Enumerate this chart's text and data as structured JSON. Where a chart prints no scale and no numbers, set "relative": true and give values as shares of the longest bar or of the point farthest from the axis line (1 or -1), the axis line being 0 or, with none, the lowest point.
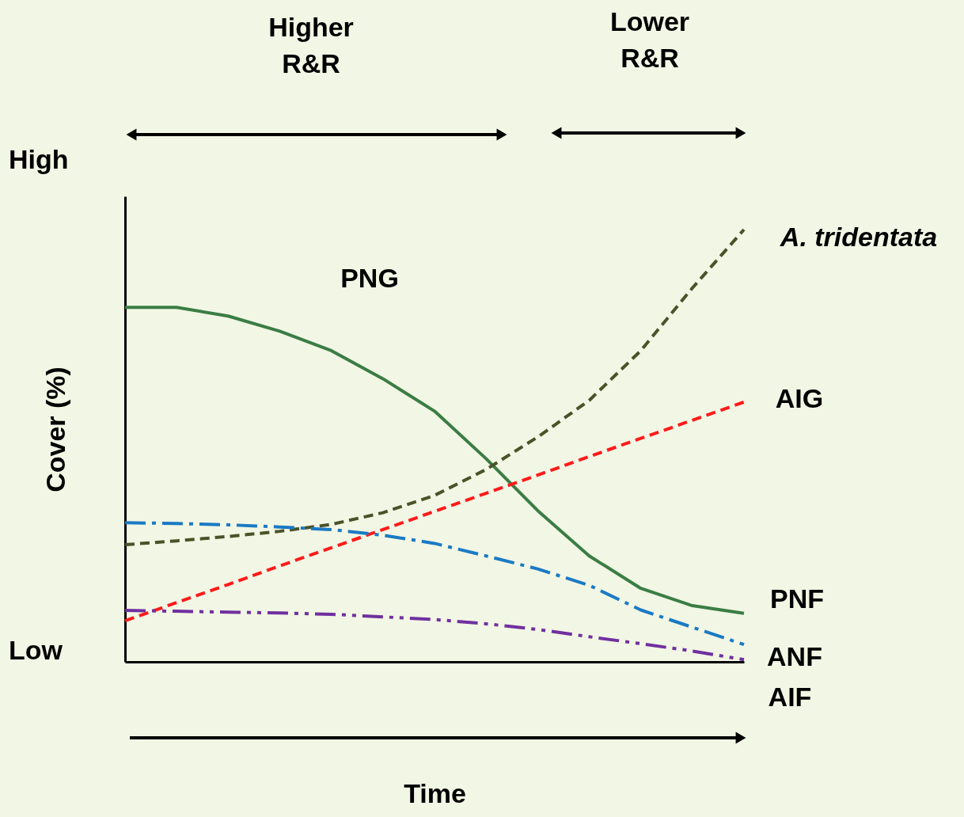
{
  "chart_data": {
    "type": "line",
    "relative": true,
    "xlabel": "Time",
    "ylabel": "Cover (%)",
    "grid": false,
    "categories": [
      null,
      null,
      null,
      null,
      null,
      null,
      null,
      null,
      null,
      null,
      null,
      null,
      null
    ],
    "series": [
      {
        "color": "#3a7d44",
        "line_style": "solid",
        "values": [
          0.82,
          0.82,
          0.8,
          0.765,
          0.72,
          0.655,
          0.58,
          0.47,
          0.35,
          0.245,
          0.17,
          0.13,
          0.112
        ]
      },
      {
        "color": "#4a5228",
        "line_style": "dashed",
        "values": [
          0.271,
          0.28,
          0.29,
          0.302,
          0.318,
          0.345,
          0.385,
          0.445,
          0.52,
          0.605,
          0.72,
          0.865,
          1.0
        ]
      },
      {
        "color": "#ff1a1a",
        "line_style": "dashed",
        "values": [
          0.095,
          0.137,
          0.179,
          0.222,
          0.264,
          0.306,
          0.348,
          0.39,
          0.432,
          0.475,
          0.517,
          0.559,
          0.601
        ]
      },
      {
        "color": "#1a7ac4",
        "line_style": "dashdot",
        "values": [
          0.322,
          0.32,
          0.317,
          0.312,
          0.306,
          0.293,
          0.274,
          0.245,
          0.215,
          0.177,
          0.12,
          0.08,
          0.04
        ]
      },
      {
        "color": "#7030a0",
        "line_style": "dashdotdot",
        "values": [
          0.119,
          0.117,
          0.115,
          0.113,
          0.11,
          0.104,
          0.098,
          0.088,
          0.075,
          0.058,
          0.042,
          0.025,
          0.005
        ]
      }
    ],
    "annotations": [
      "PNG",
      "A. tridentata",
      "AIG",
      "PNF",
      "ANF",
      "AIF",
      "High",
      "Low",
      "Higher\nR&R",
      "Lower\nR&R"
    ]
  }
}
